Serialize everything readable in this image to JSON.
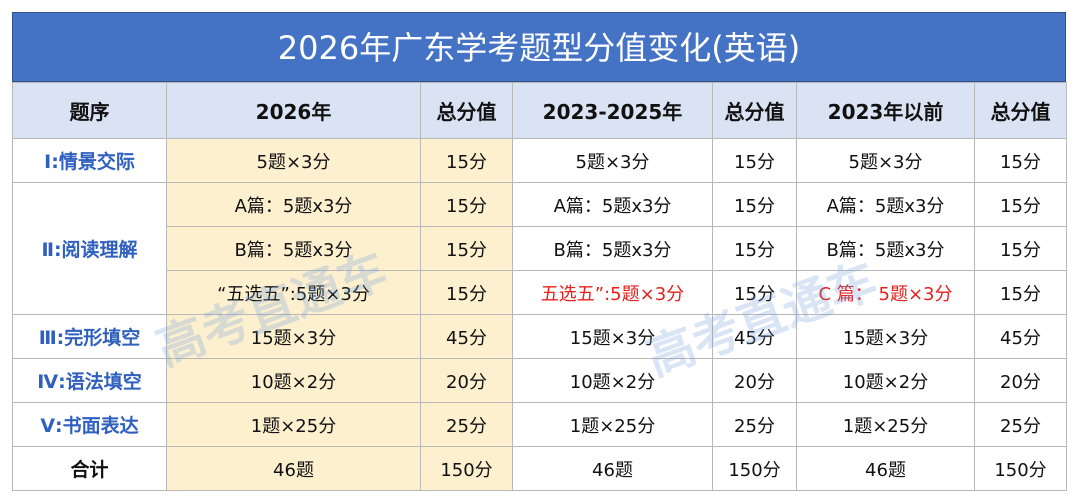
{
  "table": {
    "title": "2026年广东学考题型分值变化(英语)",
    "header": [
      "题序",
      "2026年",
      "总分值",
      "2023-2025年",
      "总分值",
      "2023年以前",
      "总分值"
    ],
    "rows": [
      [
        "Ⅰ:情景交际",
        "5题×3分",
        "15分",
        "5题×3分",
        "15分",
        "5题×3分",
        "15分"
      ],
      [
        "Ⅱ:阅读理解",
        "A篇：5题x3分",
        "15分",
        "A篇：5题x3分",
        "15分",
        "A篇：5题x3分",
        "15分"
      ],
      [
        "B篇：5题x3分",
        "15分",
        "B篇：5题x3分",
        "15分",
        "B篇：5题x3分",
        "15分"
      ],
      [
        "“五选五”:5题×3分",
        "15分",
        {
          "text": "五选五”:5题×3分",
          "color": "#e8201c"
        },
        "15分",
        {
          "text": "C 篇： 5题×3分",
          "color": "#e8201c"
        },
        "15分"
      ],
      [
        "Ⅲ:完形填空",
        "15题×3分",
        "45分",
        "15题×3分",
        "45分",
        "15题×3分",
        "45分"
      ],
      [
        "Ⅳ:语法填空",
        "10题×2分",
        "20分",
        "10题×2分",
        "20分",
        "10题×2分",
        "20分"
      ],
      [
        "Ⅴ:书面表达",
        "1题×25分",
        "25分",
        "1题×25分",
        "25分",
        "1题×25分",
        "25分"
      ],
      [
        "合计",
        "46题",
        "150分",
        "46题",
        "150分",
        "46题",
        "150分"
      ]
    ],
    "watermark": "高考直通车"
  }
}
